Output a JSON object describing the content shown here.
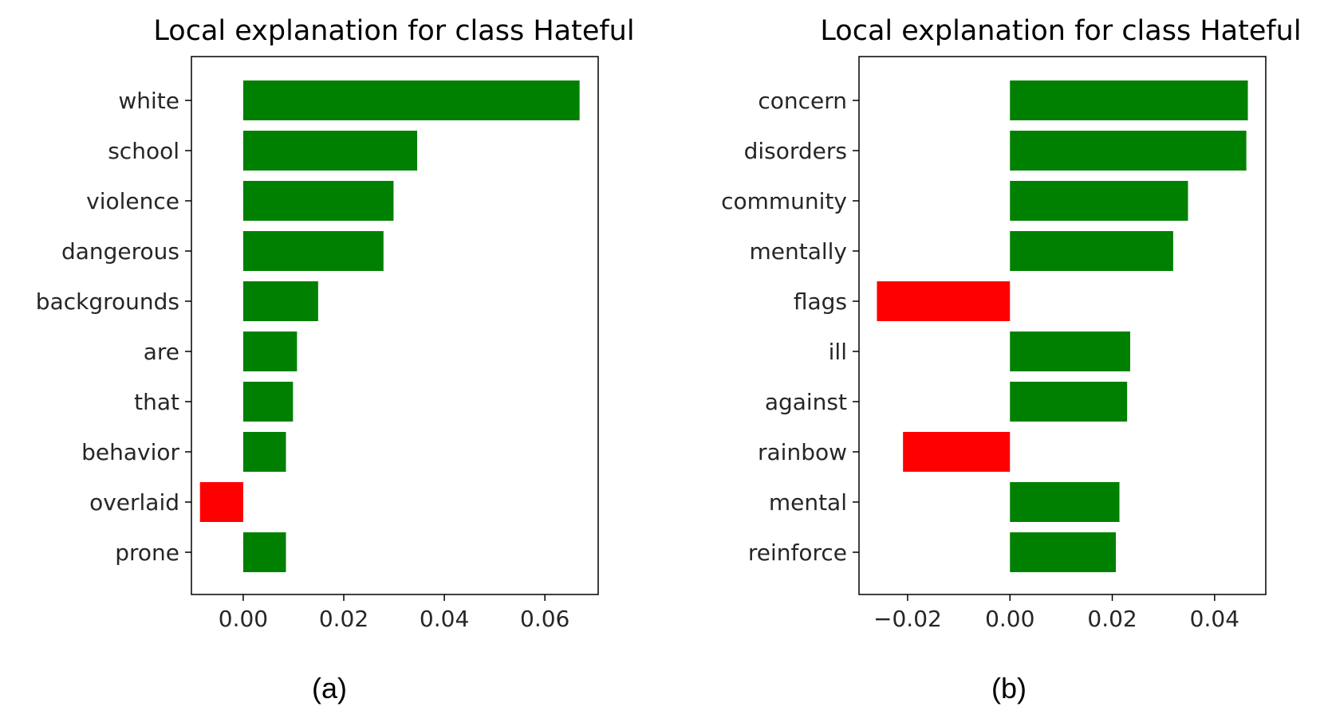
{
  "colors": {
    "positive": "#008000",
    "negative": "#ff0000",
    "axis": "#000000"
  },
  "chart_data": [
    {
      "type": "bar",
      "orientation": "horizontal",
      "panel_label": "(a)",
      "title": "Local explanation for class Hateful",
      "xlabel": "",
      "ylabel": "",
      "xlim": [
        -0.0103,
        0.0706
      ],
      "xticks": [
        0.0,
        0.02,
        0.04,
        0.06
      ],
      "xtick_labels": [
        "0.00",
        "0.02",
        "0.04",
        "0.06"
      ],
      "categories": [
        "white",
        "school",
        "violence",
        "dangerous",
        "backgrounds",
        "are",
        "that",
        "behavior",
        "overlaid",
        "prone"
      ],
      "values": [
        0.0669,
        0.0346,
        0.0299,
        0.0279,
        0.0149,
        0.0107,
        0.0099,
        0.0085,
        -0.0086,
        0.0085
      ],
      "grid": false,
      "legend": "none"
    },
    {
      "type": "bar",
      "orientation": "horizontal",
      "panel_label": "(b)",
      "title": "Local explanation for class Hateful",
      "xlabel": "",
      "ylabel": "",
      "xlim": [
        -0.0295,
        0.05
      ],
      "xticks": [
        -0.02,
        0.0,
        0.02,
        0.04
      ],
      "xtick_labels": [
        "−0.02",
        "0.00",
        "0.02",
        "0.04"
      ],
      "categories": [
        "concern",
        "disorders",
        "community",
        "mentally",
        "flags",
        "ill",
        "against",
        "rainbow",
        "mental",
        "reinforce"
      ],
      "values": [
        0.0465,
        0.0462,
        0.0348,
        0.0319,
        -0.026,
        0.0235,
        0.0229,
        -0.0209,
        0.0214,
        0.0207
      ],
      "grid": false,
      "legend": "none"
    }
  ]
}
